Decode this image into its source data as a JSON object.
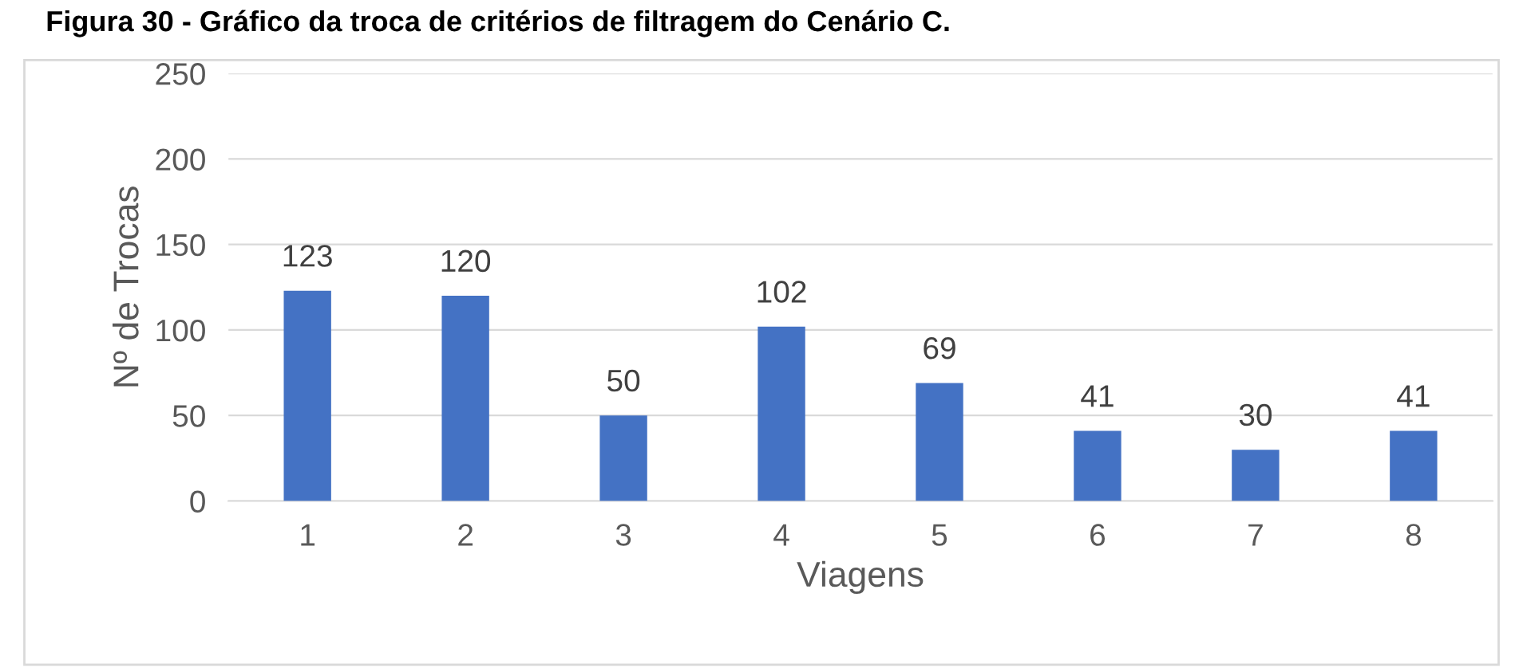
{
  "chart_data": {
    "type": "bar",
    "title": "Figura 30 - Gráfico da troca de critérios de filtragem do Cenário C.",
    "xlabel": "Viagens",
    "ylabel": "Nº de Trocas",
    "categories": [
      "1",
      "2",
      "3",
      "4",
      "5",
      "6",
      "7",
      "8"
    ],
    "values": [
      123,
      120,
      50,
      102,
      69,
      41,
      30,
      41
    ],
    "color": "#4472c4",
    "ylim": [
      0,
      250
    ],
    "yticks": [
      0,
      50,
      100,
      150,
      200,
      250
    ],
    "grid": "y",
    "data_labels": true
  }
}
